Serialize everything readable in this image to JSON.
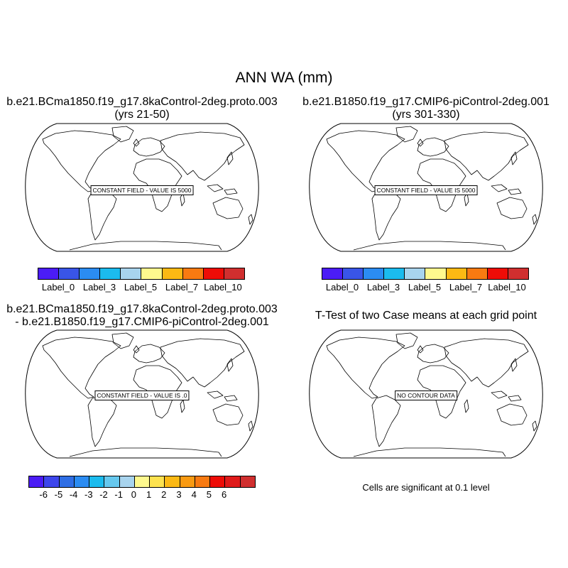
{
  "figure": {
    "title": "ANN WA (mm)",
    "panels": [
      {
        "title_line1": "b.e21.BCma1850.f19_g17.8kaControl-2deg.proto.003",
        "title_line2": "(yrs 21-50)",
        "note": "CONSTANT FIELD - VALUE IS 5000"
      },
      {
        "title_line1": "b.e21.B1850.f19_g17.CMIP6-piControl-2deg.001",
        "title_line2": "(yrs 301-330)",
        "note": "CONSTANT FIELD - VALUE IS 5000"
      },
      {
        "title_line1": "b.e21.BCma1850.f19_g17.8kaControl-2deg.proto.003",
        "title_line2": "- b.e21.B1850.f19_g17.CMIP6-piControl-2deg.001",
        "note": "CONSTANT FIELD - VALUE IS .0"
      },
      {
        "title_line1": "T-Test of two Case means at each grid point",
        "note": "NO CONTOUR DATA",
        "footnote": "Cells are significant at 0.1 level"
      }
    ]
  },
  "colorbars": {
    "case": {
      "colors": [
        "#4b1cf5",
        "#3955e8",
        "#2b8cf2",
        "#1bbbee",
        "#a8d4ee",
        "#fef98e",
        "#fcb914",
        "#f87a11",
        "#ee0c07",
        "#d02f2f"
      ],
      "labels": [
        {
          "text": "Label_0",
          "boundary": 1
        },
        {
          "text": "Label_3",
          "boundary": 3
        },
        {
          "text": "Label_5",
          "boundary": 5
        },
        {
          "text": "Label_7",
          "boundary": 7
        },
        {
          "text": "Label_10",
          "boundary": 9
        }
      ]
    },
    "diff": {
      "colors": [
        "#4b1cf5",
        "#3d46ec",
        "#2f6ee5",
        "#2b8cf2",
        "#1bbbee",
        "#66c8ee",
        "#a8d4ee",
        "#fef98e",
        "#fde24f",
        "#fcb914",
        "#f99a12",
        "#f87a11",
        "#ee0c07",
        "#e01a1a",
        "#d02f2f"
      ],
      "labels": [
        "-6",
        "-5",
        "-4",
        "-3",
        "-2",
        "-1",
        "0",
        "1",
        "2",
        "3",
        "4",
        "5",
        "6"
      ]
    }
  }
}
